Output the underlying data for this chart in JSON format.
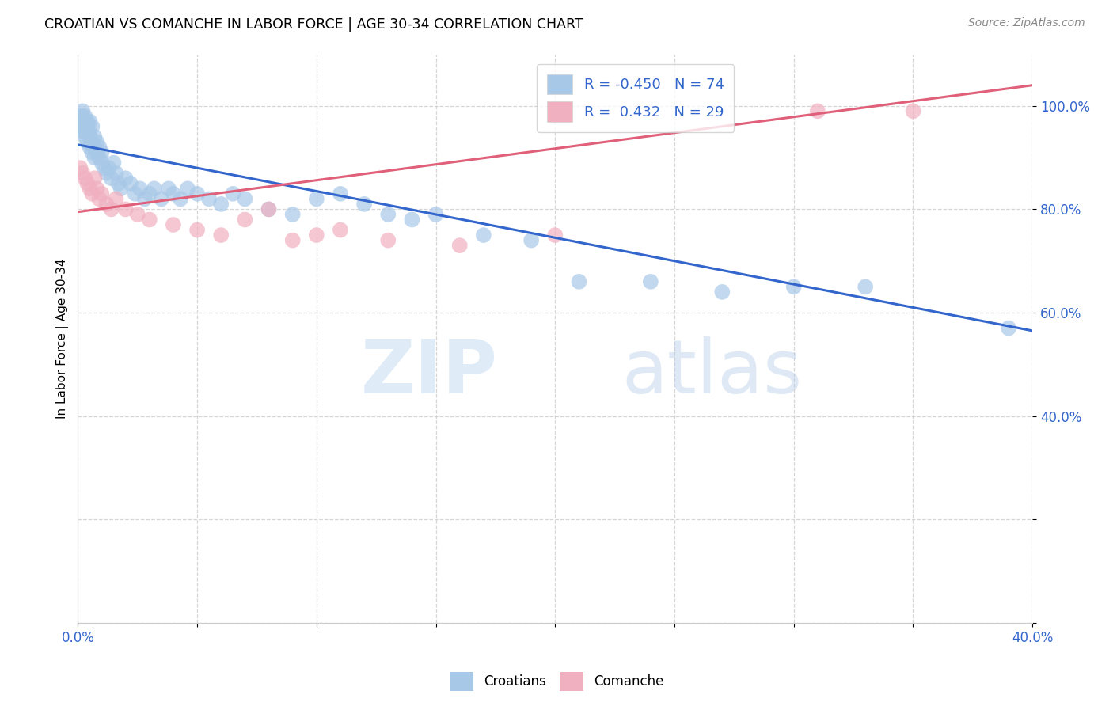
{
  "title": "CROATIAN VS COMANCHE IN LABOR FORCE | AGE 30-34 CORRELATION CHART",
  "source": "Source: ZipAtlas.com",
  "ylabel_label": "In Labor Force | Age 30-34",
  "watermark_zip": "ZIP",
  "watermark_atlas": "atlas",
  "x_min": 0.0,
  "x_max": 0.4,
  "y_min": 0.0,
  "y_max": 1.1,
  "croatian_R": -0.45,
  "croatian_N": 74,
  "comanche_R": 0.432,
  "comanche_N": 29,
  "blue_color": "#a8c8e8",
  "blue_line_color": "#3366cc",
  "pink_color": "#f0b0c0",
  "pink_line_color": "#e0607a",
  "blue_line_x": [
    0.0,
    0.4
  ],
  "blue_line_y": [
    0.925,
    0.565
  ],
  "pink_line_x": [
    0.0,
    0.4
  ],
  "pink_line_y": [
    0.795,
    1.04
  ],
  "croatian_x": [
    0.001,
    0.001,
    0.001,
    0.002,
    0.002,
    0.002,
    0.002,
    0.002,
    0.003,
    0.003,
    0.003,
    0.003,
    0.003,
    0.004,
    0.004,
    0.004,
    0.004,
    0.005,
    0.005,
    0.005,
    0.005,
    0.006,
    0.006,
    0.006,
    0.007,
    0.007,
    0.007,
    0.008,
    0.008,
    0.009,
    0.009,
    0.01,
    0.01,
    0.011,
    0.012,
    0.013,
    0.014,
    0.015,
    0.016,
    0.017,
    0.018,
    0.02,
    0.022,
    0.024,
    0.026,
    0.028,
    0.03,
    0.032,
    0.035,
    0.038,
    0.04,
    0.043,
    0.046,
    0.05,
    0.055,
    0.06,
    0.065,
    0.07,
    0.08,
    0.09,
    0.1,
    0.11,
    0.12,
    0.13,
    0.14,
    0.15,
    0.17,
    0.19,
    0.21,
    0.24,
    0.27,
    0.3,
    0.33,
    0.39
  ],
  "croatian_y": [
    0.96,
    0.97,
    0.98,
    0.95,
    0.96,
    0.97,
    0.98,
    0.99,
    0.94,
    0.95,
    0.96,
    0.97,
    0.98,
    0.93,
    0.95,
    0.96,
    0.97,
    0.92,
    0.94,
    0.95,
    0.97,
    0.91,
    0.93,
    0.96,
    0.9,
    0.92,
    0.94,
    0.91,
    0.93,
    0.9,
    0.92,
    0.89,
    0.91,
    0.88,
    0.87,
    0.88,
    0.86,
    0.89,
    0.87,
    0.85,
    0.84,
    0.86,
    0.85,
    0.83,
    0.84,
    0.82,
    0.83,
    0.84,
    0.82,
    0.84,
    0.83,
    0.82,
    0.84,
    0.83,
    0.82,
    0.81,
    0.83,
    0.82,
    0.8,
    0.79,
    0.82,
    0.83,
    0.81,
    0.79,
    0.78,
    0.79,
    0.75,
    0.74,
    0.66,
    0.66,
    0.64,
    0.65,
    0.65,
    0.57
  ],
  "comanche_x": [
    0.001,
    0.002,
    0.003,
    0.004,
    0.005,
    0.006,
    0.007,
    0.008,
    0.009,
    0.01,
    0.012,
    0.014,
    0.016,
    0.02,
    0.025,
    0.03,
    0.04,
    0.05,
    0.06,
    0.07,
    0.08,
    0.09,
    0.1,
    0.11,
    0.13,
    0.16,
    0.2,
    0.31,
    0.35
  ],
  "comanche_y": [
    0.88,
    0.87,
    0.86,
    0.85,
    0.84,
    0.83,
    0.86,
    0.84,
    0.82,
    0.83,
    0.81,
    0.8,
    0.82,
    0.8,
    0.79,
    0.78,
    0.77,
    0.76,
    0.75,
    0.78,
    0.8,
    0.74,
    0.75,
    0.76,
    0.74,
    0.73,
    0.75,
    0.99,
    0.99
  ]
}
